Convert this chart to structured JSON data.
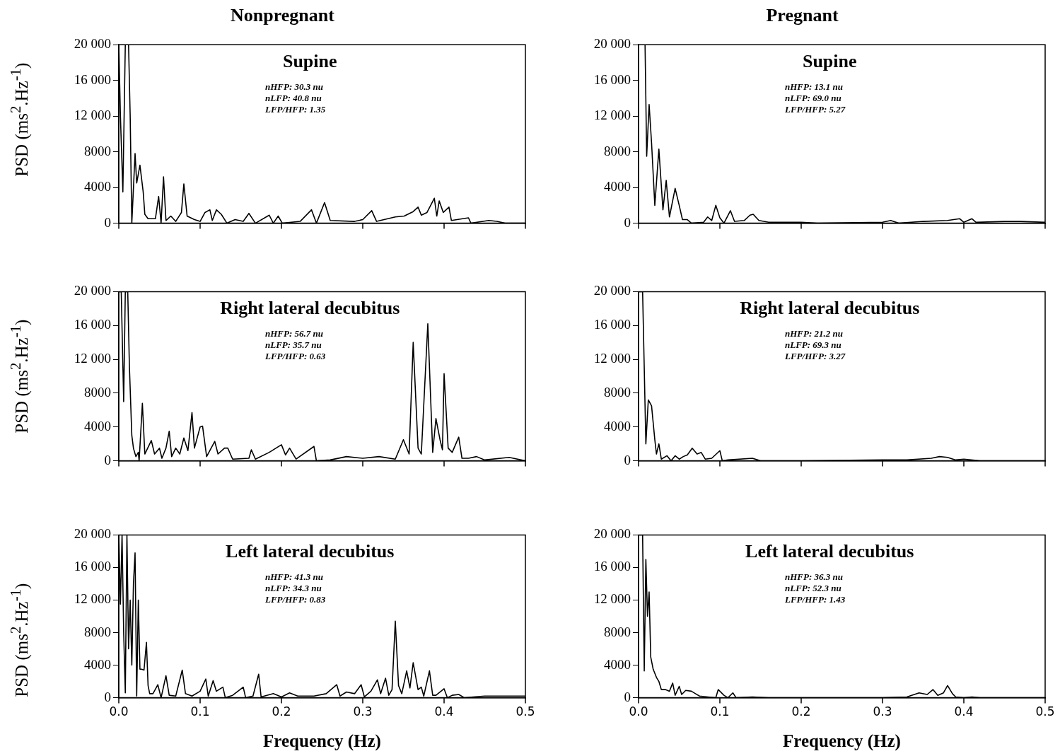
{
  "chart_data": [
    {
      "type": "line",
      "title": "Nonpregnant",
      "subtitle": "Supine",
      "ylabel": "PSD (ms$^{2}$.Hz$^{-1}$)",
      "annotations": [
        "nHFP: 30.3 nu",
        "nLFP: 40.8 nu",
        "LFP/HFP: 1.35"
      ],
      "tick_labels": "y",
      "xlim": [
        0,
        0.5
      ],
      "xticks": [
        {
          "value": 0,
          "label": null
        },
        {
          "value": 0.1,
          "label": null
        },
        {
          "value": 0.2,
          "label": null
        },
        {
          "value": 0.3,
          "label": null
        },
        {
          "value": 0.4,
          "label": null
        },
        {
          "value": 0.5,
          "label": null
        }
      ],
      "ylim": [
        0,
        20000
      ],
      "yticks": [
        0,
        4000,
        8000,
        {
          "value": 12000,
          "label": "12 000"
        },
        {
          "value": 16000,
          "label": "16 000"
        },
        {
          "value": 20000,
          "label": "20 000"
        }
      ],
      "series": [
        {
          "color": "#000000",
          "x": [
            0,
            0.002,
            0.005,
            0.008,
            0.012,
            0.014,
            0.016,
            0.02,
            0.022,
            0.026,
            0.03,
            0.032,
            0.036,
            0.045,
            0.049,
            0.052,
            0.055,
            0.058,
            0.064,
            0.07,
            0.077,
            0.08,
            0.084,
            0.093,
            0.1,
            0.106,
            0.112,
            0.115,
            0.12,
            0.126,
            0.133,
            0.143,
            0.153,
            0.16,
            0.168,
            0.185,
            0.19,
            0.196,
            0.201,
            0.223,
            0.237,
            0.243,
            0.253,
            0.26,
            0.29,
            0.3,
            0.311,
            0.317,
            0.34,
            0.351,
            0.362,
            0.368,
            0.372,
            0.379,
            0.388,
            0.391,
            0.394,
            0.399,
            0.406,
            0.409,
            0.43,
            0.433,
            0.455,
            0.465,
            0.475,
            0.5
          ],
          "values": [
            20000,
            12000,
            3500,
            20000,
            20000,
            12000,
            0,
            7800,
            4500,
            6500,
            3500,
            1000,
            500,
            500,
            3000,
            0,
            5200,
            300,
            800,
            200,
            1200,
            4400,
            800,
            400,
            200,
            1200,
            1500,
            300,
            1500,
            1000,
            0,
            400,
            200,
            1100,
            0,
            900,
            0,
            800,
            0,
            200,
            1500,
            0,
            2300,
            300,
            200,
            400,
            1400,
            200,
            700,
            800,
            1300,
            1800,
            900,
            1200,
            2800,
            800,
            2500,
            1200,
            1800,
            300,
            600,
            0,
            300,
            200,
            0,
            0
          ]
        }
      ]
    },
    {
      "type": "line",
      "title": "Pregnant",
      "subtitle": "Supine",
      "annotations": [
        "nHFP: 13.1 nu",
        "nLFP: 69.0 nu",
        "LFP/HFP: 5.27"
      ],
      "tick_labels": "y",
      "xlim": [
        0,
        0.5
      ],
      "xticks": [
        {
          "value": 0,
          "label": null
        },
        {
          "value": 0.1,
          "label": null
        },
        {
          "value": 0.2,
          "label": null
        },
        {
          "value": 0.3,
          "label": null
        },
        {
          "value": 0.4,
          "label": null
        },
        {
          "value": 0.5,
          "label": null
        }
      ],
      "ylim": [
        0,
        20000
      ],
      "yticks": [
        0,
        4000,
        8000,
        {
          "value": 12000,
          "label": "12 000"
        },
        {
          "value": 16000,
          "label": "16 000"
        },
        {
          "value": 20000,
          "label": "20 000"
        }
      ],
      "series": [
        {
          "color": "#000000",
          "x": [
            0,
            0.008,
            0.01,
            0.013,
            0.016,
            0.02,
            0.025,
            0.03,
            0.034,
            0.038,
            0.045,
            0.05,
            0.054,
            0.06,
            0.065,
            0.08,
            0.085,
            0.09,
            0.095,
            0.1,
            0.105,
            0.113,
            0.118,
            0.13,
            0.137,
            0.141,
            0.148,
            0.16,
            0.2,
            0.22,
            0.3,
            0.31,
            0.32,
            0.35,
            0.38,
            0.395,
            0.4,
            0.41,
            0.415,
            0.45,
            0.47,
            0.5
          ],
          "values": [
            20000,
            20000,
            7500,
            13300,
            9000,
            2000,
            8300,
            1500,
            4800,
            700,
            3900,
            2000,
            400,
            400,
            0,
            100,
            700,
            300,
            2000,
            600,
            0,
            1400,
            200,
            300,
            900,
            1000,
            300,
            100,
            100,
            0,
            100,
            300,
            0,
            200,
            300,
            500,
            100,
            500,
            100,
            200,
            200,
            100
          ]
        }
      ]
    },
    {
      "type": "line",
      "subtitle": "Right lateral decubitus",
      "ylabel": "PSD (ms$^{2}$.Hz$^{-1}$)",
      "annotations": [
        "nHFP: 56.7 nu",
        "nLFP: 35.7 nu",
        "LFP/HFP: 0.63"
      ],
      "tick_labels": "y",
      "xlim": [
        0,
        0.5
      ],
      "xticks": [
        {
          "value": 0,
          "label": null
        },
        {
          "value": 0.1,
          "label": null
        },
        {
          "value": 0.2,
          "label": null
        },
        {
          "value": 0.3,
          "label": null
        },
        {
          "value": 0.4,
          "label": null
        },
        {
          "value": 0.5,
          "label": null
        }
      ],
      "ylim": [
        0,
        20000
      ],
      "yticks": [
        0,
        4000,
        8000,
        {
          "value": 12000,
          "label": "12 000"
        },
        {
          "value": 16000,
          "label": "16 000"
        },
        {
          "value": 20000,
          "label": "20 000"
        }
      ],
      "series": [
        {
          "color": "#000000",
          "x": [
            0,
            0.003,
            0.006,
            0.008,
            0.011,
            0.013,
            0.016,
            0.018,
            0.021,
            0.024,
            0.025,
            0.029,
            0.032,
            0.04,
            0.044,
            0.05,
            0.053,
            0.058,
            0.062,
            0.065,
            0.07,
            0.075,
            0.08,
            0.085,
            0.09,
            0.093,
            0.1,
            0.103,
            0.108,
            0.118,
            0.122,
            0.13,
            0.134,
            0.14,
            0.16,
            0.163,
            0.168,
            0.185,
            0.2,
            0.205,
            0.21,
            0.218,
            0.24,
            0.243,
            0.26,
            0.28,
            0.3,
            0.32,
            0.34,
            0.35,
            0.357,
            0.362,
            0.368,
            0.372,
            0.38,
            0.386,
            0.39,
            0.395,
            0.398,
            0.4,
            0.405,
            0.41,
            0.418,
            0.422,
            0.43,
            0.44,
            0.45,
            0.48,
            0.5
          ],
          "values": [
            20000,
            20000,
            7000,
            20000,
            20000,
            11300,
            3000,
            1500,
            500,
            1000,
            0,
            6800,
            800,
            2400,
            800,
            1500,
            300,
            1500,
            3500,
            500,
            1500,
            800,
            2700,
            1200,
            5700,
            1500,
            4000,
            4100,
            500,
            2300,
            800,
            1500,
            1500,
            200,
            300,
            1300,
            200,
            1000,
            1900,
            700,
            1500,
            200,
            1700,
            0,
            100,
            500,
            300,
            500,
            200,
            2500,
            800,
            14000,
            1500,
            800,
            16200,
            1000,
            5000,
            2500,
            1300,
            10300,
            1500,
            1000,
            2800,
            300,
            300,
            500,
            100,
            400,
            0
          ]
        }
      ]
    },
    {
      "type": "line",
      "subtitle": "Right lateral decubitus",
      "annotations": [
        "nHFP: 21.2 nu",
        "nLFP: 69.3 nu",
        "LFP/HFP: 3.27"
      ],
      "tick_labels": "y",
      "xlim": [
        0,
        0.5
      ],
      "xticks": [
        {
          "value": 0,
          "label": null
        },
        {
          "value": 0.1,
          "label": null
        },
        {
          "value": 0.2,
          "label": null
        },
        {
          "value": 0.3,
          "label": null
        },
        {
          "value": 0.4,
          "label": null
        },
        {
          "value": 0.5,
          "label": null
        }
      ],
      "ylim": [
        0,
        20000
      ],
      "yticks": [
        0,
        4000,
        8000,
        {
          "value": 12000,
          "label": "12 000"
        },
        {
          "value": 16000,
          "label": "16 000"
        },
        {
          "value": 20000,
          "label": "20 000"
        }
      ],
      "series": [
        {
          "color": "#000000",
          "x": [
            0,
            0.005,
            0.009,
            0.012,
            0.016,
            0.02,
            0.022,
            0.025,
            0.028,
            0.035,
            0.04,
            0.045,
            0.05,
            0.055,
            0.06,
            0.066,
            0.072,
            0.077,
            0.082,
            0.09,
            0.1,
            0.103,
            0.11,
            0.14,
            0.15,
            0.2,
            0.3,
            0.33,
            0.36,
            0.37,
            0.38,
            0.39,
            0.4,
            0.42,
            0.5
          ],
          "values": [
            20000,
            20000,
            2000,
            7200,
            6500,
            2500,
            800,
            2000,
            200,
            600,
            0,
            600,
            200,
            500,
            700,
            1500,
            800,
            1000,
            200,
            300,
            1200,
            0,
            100,
            300,
            0,
            0,
            100,
            100,
            300,
            500,
            400,
            100,
            200,
            0,
            0
          ]
        }
      ]
    },
    {
      "type": "line",
      "subtitle": "Left lateral decubitus",
      "ylabel": "PSD (ms$^{2}$.Hz$^{-1}$)",
      "xlabel": "Frequency (Hz)",
      "annotations": [
        "nHFP: 41.3 nu",
        "nLFP: 34.3 nu",
        "LFP/HFP: 0.83"
      ],
      "xlim": [
        0,
        0.5
      ],
      "xticks": [
        {
          "value": 0,
          "label": "0.0"
        },
        0.1,
        0.2,
        0.3,
        0.4,
        0.5
      ],
      "ylim": [
        0,
        20000
      ],
      "yticks": [
        0,
        4000,
        8000,
        {
          "value": 12000,
          "label": "12 000"
        },
        {
          "value": 16000,
          "label": "16 000"
        },
        {
          "value": 20000,
          "label": "20 000"
        }
      ],
      "series": [
        {
          "color": "#000000",
          "x": [
            0,
            0.002,
            0.004,
            0.006,
            0.008,
            0.01,
            0.012,
            0.014,
            0.016,
            0.018,
            0.02,
            0.022,
            0.024,
            0.026,
            0.028,
            0.031,
            0.034,
            0.036,
            0.038,
            0.042,
            0.048,
            0.052,
            0.058,
            0.062,
            0.07,
            0.078,
            0.082,
            0.09,
            0.1,
            0.107,
            0.11,
            0.116,
            0.12,
            0.128,
            0.131,
            0.14,
            0.153,
            0.156,
            0.165,
            0.172,
            0.175,
            0.19,
            0.2,
            0.21,
            0.22,
            0.24,
            0.255,
            0.268,
            0.272,
            0.28,
            0.29,
            0.298,
            0.302,
            0.31,
            0.318,
            0.322,
            0.328,
            0.332,
            0.336,
            0.34,
            0.344,
            0.348,
            0.354,
            0.358,
            0.362,
            0.368,
            0.372,
            0.375,
            0.382,
            0.386,
            0.39,
            0.4,
            0.404,
            0.41,
            0.418,
            0.425,
            0.45,
            0.5
          ],
          "values": [
            20000,
            11500,
            20000,
            8000,
            600,
            20000,
            6000,
            12000,
            4000,
            14000,
            17800,
            200,
            12000,
            3500,
            3500,
            3400,
            6800,
            1500,
            500,
            500,
            1600,
            0,
            2700,
            300,
            200,
            3400,
            500,
            200,
            800,
            2300,
            200,
            2100,
            800,
            1300,
            0,
            300,
            1300,
            0,
            200,
            2900,
            100,
            500,
            100,
            600,
            200,
            200,
            500,
            1600,
            200,
            700,
            500,
            1600,
            100,
            800,
            2200,
            500,
            2400,
            300,
            1000,
            9400,
            1500,
            500,
            3300,
            1200,
            4300,
            1000,
            1300,
            200,
            3300,
            300,
            300,
            1100,
            0,
            300,
            400,
            0,
            200,
            200
          ]
        }
      ]
    },
    {
      "type": "line",
      "subtitle": "Left lateral decubitus",
      "xlabel": "Frequency (Hz)",
      "annotations": [
        "nHFP: 36.3 nu",
        "nLFP: 52.3 nu",
        "LFP/HFP: 1.43"
      ],
      "xlim": [
        0,
        0.5
      ],
      "xticks": [
        {
          "value": 0,
          "label": "0.0"
        },
        0.1,
        0.2,
        0.3,
        0.4,
        0.5
      ],
      "ylim": [
        0,
        20000
      ],
      "yticks": [
        0,
        4000,
        8000,
        {
          "value": 12000,
          "label": "12 000"
        },
        {
          "value": 16000,
          "label": "16 000"
        },
        {
          "value": 20000,
          "label": "20 000"
        }
      ],
      "series": [
        {
          "color": "#000000",
          "x": [
            0,
            0.003,
            0.005,
            0.007,
            0.009,
            0.011,
            0.013,
            0.015,
            0.018,
            0.022,
            0.025,
            0.028,
            0.033,
            0.038,
            0.042,
            0.045,
            0.05,
            0.053,
            0.058,
            0.065,
            0.07,
            0.075,
            0.085,
            0.095,
            0.098,
            0.105,
            0.11,
            0.116,
            0.12,
            0.14,
            0.16,
            0.3,
            0.33,
            0.345,
            0.355,
            0.362,
            0.368,
            0.375,
            0.38,
            0.386,
            0.39,
            0.4,
            0.41,
            0.42,
            0.5
          ],
          "values": [
            20000,
            20000,
            20000,
            3300,
            17000,
            10000,
            13000,
            5000,
            3500,
            2500,
            2000,
            1000,
            1000,
            800,
            1800,
            300,
            1400,
            400,
            900,
            800,
            500,
            200,
            100,
            0,
            1000,
            300,
            0,
            600,
            0,
            100,
            0,
            0,
            100,
            600,
            400,
            1000,
            300,
            600,
            1500,
            500,
            100,
            0,
            100,
            0,
            0
          ]
        }
      ]
    }
  ]
}
